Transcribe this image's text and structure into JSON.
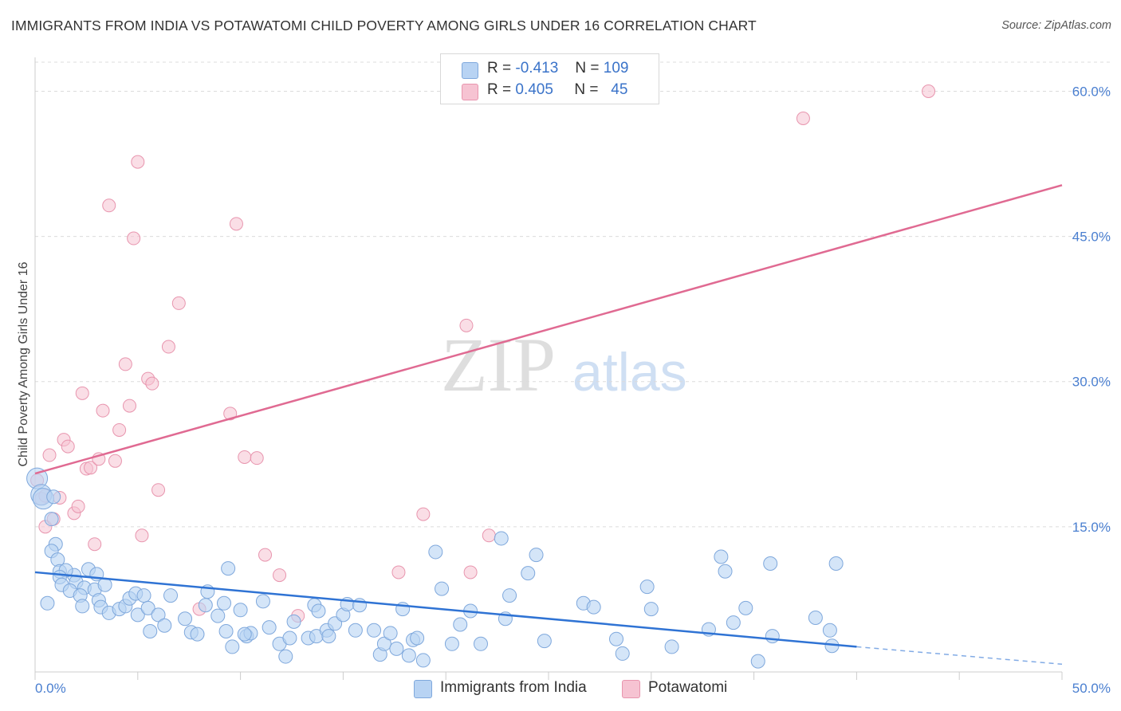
{
  "title": "IMMIGRANTS FROM INDIA VS POTAWATOMI CHILD POVERTY AMONG GIRLS UNDER 16 CORRELATION CHART",
  "source": "Source: ZipAtlas.com",
  "watermark": {
    "zip": "ZIP",
    "atlas": "atlas"
  },
  "legend": {
    "rows": [
      {
        "r_label": "R =",
        "r_value": "-0.413",
        "n_label": "N =",
        "n_value": "109"
      },
      {
        "r_label": "R =",
        "r_value": "0.405",
        "n_label": "N =",
        "n_value": "45"
      }
    ]
  },
  "bottom_legend": {
    "series1": "Immigrants from India",
    "series2": "Potawatomi"
  },
  "colors": {
    "india_fill": "#b8d3f3",
    "india_stroke": "#7fa8dc",
    "india_line": "#2f73d4",
    "pota_fill": "#f6c3d2",
    "pota_stroke": "#e895ae",
    "pota_line": "#e06a92",
    "tick": "#4a7fd0",
    "grid": "#dcdcdc"
  },
  "chart_data": {
    "type": "scatter",
    "title": "IMMIGRANTS FROM INDIA VS POTAWATOMI CHILD POVERTY AMONG GIRLS UNDER 16 CORRELATION CHART",
    "xlabel": "",
    "ylabel": "Child Poverty Among Girls Under 16",
    "xlim": [
      0,
      50
    ],
    "ylim": [
      0,
      63.5
    ],
    "x_tick_labels": [
      "0.0%",
      "50.0%"
    ],
    "y_ticks": [
      15,
      30,
      45,
      60
    ],
    "y_tick_labels": [
      "15.0%",
      "30.0%",
      "45.0%",
      "60.0%"
    ],
    "grid": true,
    "legend_position": "top-center",
    "series": [
      {
        "name": "Immigrants from India",
        "r": -0.413,
        "n": 109,
        "trend": {
          "x0": 0,
          "y0": 10.3,
          "x1": 40,
          "y1": 2.6,
          "dashed_to_x": 50,
          "dashed_to_y": 0.8
        },
        "points": [
          [
            0.1,
            20.0
          ],
          [
            0.3,
            18.3
          ],
          [
            0.4,
            17.9
          ],
          [
            0.9,
            18.1
          ],
          [
            0.8,
            15.8
          ],
          [
            1.0,
            13.2
          ],
          [
            0.8,
            12.5
          ],
          [
            1.1,
            11.6
          ],
          [
            1.2,
            10.4
          ],
          [
            1.9,
            10.0
          ],
          [
            2.0,
            9.3
          ],
          [
            2.6,
            10.6
          ],
          [
            2.4,
            8.7
          ],
          [
            1.5,
            10.5
          ],
          [
            1.2,
            9.8
          ],
          [
            1.3,
            9.0
          ],
          [
            1.7,
            8.4
          ],
          [
            2.2,
            7.9
          ],
          [
            3.0,
            10.1
          ],
          [
            2.9,
            8.5
          ],
          [
            3.4,
            9.0
          ],
          [
            3.1,
            7.4
          ],
          [
            2.3,
            6.8
          ],
          [
            0.6,
            7.1
          ],
          [
            3.2,
            6.7
          ],
          [
            3.6,
            6.1
          ],
          [
            4.1,
            6.5
          ],
          [
            4.4,
            6.8
          ],
          [
            4.6,
            7.6
          ],
          [
            4.9,
            8.1
          ],
          [
            5.0,
            5.9
          ],
          [
            5.3,
            7.9
          ],
          [
            5.5,
            6.6
          ],
          [
            5.6,
            4.2
          ],
          [
            6.0,
            5.9
          ],
          [
            6.3,
            4.8
          ],
          [
            6.6,
            7.9
          ],
          [
            7.3,
            5.5
          ],
          [
            7.6,
            4.1
          ],
          [
            7.9,
            3.9
          ],
          [
            8.4,
            8.3
          ],
          [
            8.3,
            6.9
          ],
          [
            8.9,
            5.8
          ],
          [
            9.2,
            7.1
          ],
          [
            9.3,
            4.2
          ],
          [
            9.6,
            2.6
          ],
          [
            9.4,
            10.7
          ],
          [
            10.0,
            6.4
          ],
          [
            10.3,
            3.7
          ],
          [
            10.5,
            4.0
          ],
          [
            10.2,
            3.9
          ],
          [
            11.1,
            7.3
          ],
          [
            11.4,
            4.6
          ],
          [
            11.9,
            2.9
          ],
          [
            12.2,
            1.6
          ],
          [
            12.6,
            5.2
          ],
          [
            12.4,
            3.5
          ],
          [
            13.3,
            3.5
          ],
          [
            13.6,
            6.9
          ],
          [
            13.8,
            6.3
          ],
          [
            13.7,
            3.7
          ],
          [
            14.2,
            4.3
          ],
          [
            14.3,
            3.7
          ],
          [
            14.6,
            5.0
          ],
          [
            15.0,
            5.9
          ],
          [
            15.2,
            7.0
          ],
          [
            15.6,
            4.3
          ],
          [
            15.8,
            6.9
          ],
          [
            16.5,
            4.3
          ],
          [
            16.8,
            1.8
          ],
          [
            17.0,
            2.9
          ],
          [
            17.3,
            4.0
          ],
          [
            17.6,
            2.4
          ],
          [
            17.9,
            6.5
          ],
          [
            18.2,
            1.7
          ],
          [
            18.4,
            3.3
          ],
          [
            18.6,
            3.5
          ],
          [
            18.9,
            1.2
          ],
          [
            19.5,
            12.4
          ],
          [
            19.8,
            8.6
          ],
          [
            20.3,
            2.9
          ],
          [
            20.7,
            4.9
          ],
          [
            21.2,
            6.3
          ],
          [
            21.7,
            2.9
          ],
          [
            22.7,
            13.8
          ],
          [
            22.9,
            5.5
          ],
          [
            23.1,
            7.9
          ],
          [
            24.0,
            10.2
          ],
          [
            24.4,
            12.1
          ],
          [
            24.8,
            3.2
          ],
          [
            26.7,
            7.1
          ],
          [
            27.2,
            6.7
          ],
          [
            28.3,
            3.4
          ],
          [
            28.6,
            1.9
          ],
          [
            29.8,
            8.8
          ],
          [
            30.0,
            6.5
          ],
          [
            31.0,
            2.6
          ],
          [
            32.8,
            4.4
          ],
          [
            33.6,
            10.4
          ],
          [
            34.0,
            5.1
          ],
          [
            35.2,
            1.1
          ],
          [
            34.6,
            6.6
          ],
          [
            35.8,
            11.2
          ],
          [
            35.9,
            3.7
          ],
          [
            38.0,
            5.6
          ],
          [
            38.8,
            2.7
          ],
          [
            39.0,
            11.2
          ],
          [
            33.4,
            11.9
          ],
          [
            38.7,
            4.3
          ]
        ]
      },
      {
        "name": "Potawatomi",
        "r": 0.405,
        "n": 45,
        "trend": {
          "x0": 0,
          "y0": 20.5,
          "x1": 50,
          "y1": 50.3
        },
        "points": [
          [
            0.1,
            19.8
          ],
          [
            0.3,
            17.9
          ],
          [
            0.5,
            15.0
          ],
          [
            0.7,
            22.4
          ],
          [
            0.9,
            15.8
          ],
          [
            1.2,
            18.0
          ],
          [
            1.4,
            24.0
          ],
          [
            1.6,
            23.3
          ],
          [
            1.9,
            16.4
          ],
          [
            2.1,
            17.1
          ],
          [
            2.3,
            28.8
          ],
          [
            2.5,
            21.0
          ],
          [
            2.7,
            21.1
          ],
          [
            2.9,
            13.2
          ],
          [
            3.1,
            22.0
          ],
          [
            3.3,
            27.0
          ],
          [
            3.6,
            48.2
          ],
          [
            3.9,
            21.8
          ],
          [
            4.1,
            25.0
          ],
          [
            4.4,
            31.8
          ],
          [
            4.6,
            27.5
          ],
          [
            4.8,
            44.8
          ],
          [
            5.0,
            52.7
          ],
          [
            5.2,
            14.1
          ],
          [
            5.5,
            30.3
          ],
          [
            5.7,
            29.8
          ],
          [
            6.0,
            18.8
          ],
          [
            6.5,
            33.6
          ],
          [
            7.0,
            38.1
          ],
          [
            8.0,
            6.5
          ],
          [
            9.5,
            26.7
          ],
          [
            9.8,
            46.3
          ],
          [
            10.2,
            22.2
          ],
          [
            10.8,
            22.1
          ],
          [
            11.2,
            12.1
          ],
          [
            11.9,
            10.0
          ],
          [
            12.8,
            5.8
          ],
          [
            17.7,
            10.3
          ],
          [
            18.9,
            16.3
          ],
          [
            21.0,
            35.8
          ],
          [
            21.2,
            10.3
          ],
          [
            22.1,
            14.1
          ],
          [
            37.4,
            57.2
          ],
          [
            43.5,
            60.0
          ],
          [
            0.5,
            18.2
          ]
        ]
      }
    ]
  }
}
